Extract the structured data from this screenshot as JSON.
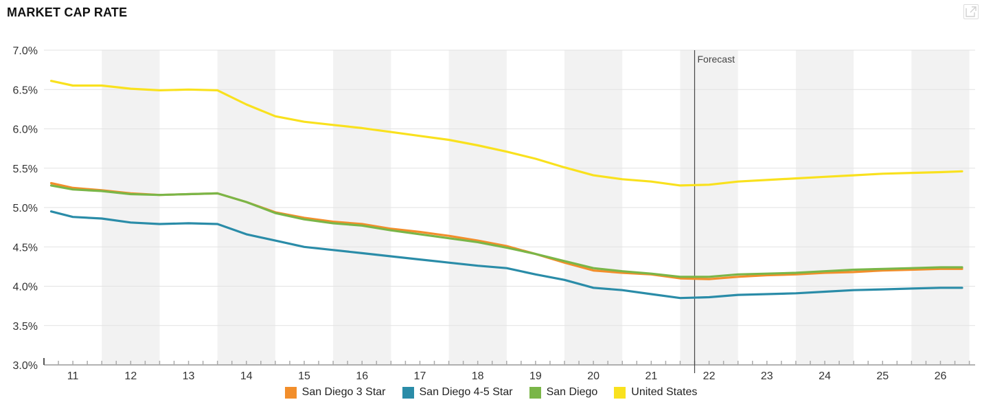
{
  "header": {
    "title": "MARKET CAP RATE"
  },
  "icons": {
    "expand": "expand-icon"
  },
  "chart_data": {
    "type": "line",
    "title": "MARKET CAP RATE",
    "xlabel": "",
    "ylabel": "",
    "ylim": [
      3.0,
      7.0
    ],
    "y_ticks": [
      "7.0%",
      "6.5%",
      "6.0%",
      "5.5%",
      "5.0%",
      "4.5%",
      "4.0%",
      "3.5%",
      "3.0%"
    ],
    "x_ticks": [
      "11",
      "12",
      "13",
      "14",
      "15",
      "16",
      "17",
      "18",
      "19",
      "20",
      "21",
      "22",
      "23",
      "24",
      "25",
      "26"
    ],
    "x_range": [
      2010.5,
      2026.6
    ],
    "forecast_label": "Forecast",
    "forecast_start": 2021.75,
    "grid": "horizontal, alternating year bands",
    "legend_position": "bottom",
    "series": [
      {
        "name": "San Diego 3 Star",
        "color": "#F28E2B",
        "x": [
          2010.625,
          2011,
          2011.5,
          2012,
          2012.5,
          2013,
          2013.5,
          2014,
          2014.5,
          2015,
          2015.5,
          2016,
          2016.5,
          2017,
          2017.5,
          2018,
          2018.5,
          2019,
          2019.5,
          2020,
          2020.5,
          2021,
          2021.5,
          2022,
          2022.5,
          2023,
          2023.5,
          2024,
          2024.5,
          2025,
          2025.5,
          2026,
          2026.375
        ],
        "values": [
          5.31,
          5.25,
          5.22,
          5.18,
          5.16,
          5.17,
          5.18,
          5.07,
          4.94,
          4.87,
          4.82,
          4.79,
          4.73,
          4.69,
          4.64,
          4.58,
          4.51,
          4.41,
          4.3,
          4.2,
          4.17,
          4.15,
          4.1,
          4.09,
          4.12,
          4.14,
          4.15,
          4.17,
          4.18,
          4.2,
          4.21,
          4.22,
          4.22
        ]
      },
      {
        "name": "San Diego 4-5 Star",
        "color": "#2A8CA8",
        "x": [
          2010.625,
          2011,
          2011.5,
          2012,
          2012.5,
          2013,
          2013.5,
          2014,
          2014.5,
          2015,
          2015.5,
          2016,
          2016.5,
          2017,
          2017.5,
          2018,
          2018.5,
          2019,
          2019.5,
          2020,
          2020.5,
          2021,
          2021.5,
          2022,
          2022.5,
          2023,
          2023.5,
          2024,
          2024.5,
          2025,
          2025.5,
          2026,
          2026.375
        ],
        "values": [
          4.95,
          4.88,
          4.86,
          4.81,
          4.79,
          4.8,
          4.79,
          4.66,
          4.58,
          4.5,
          4.46,
          4.42,
          4.38,
          4.34,
          4.3,
          4.26,
          4.23,
          4.15,
          4.08,
          3.98,
          3.95,
          3.9,
          3.85,
          3.86,
          3.89,
          3.9,
          3.91,
          3.93,
          3.95,
          3.96,
          3.97,
          3.98,
          3.98
        ]
      },
      {
        "name": "San Diego",
        "color": "#7AB648",
        "x": [
          2010.625,
          2011,
          2011.5,
          2012,
          2012.5,
          2013,
          2013.5,
          2014,
          2014.5,
          2015,
          2015.5,
          2016,
          2016.5,
          2017,
          2017.5,
          2018,
          2018.5,
          2019,
          2019.5,
          2020,
          2020.5,
          2021,
          2021.5,
          2022,
          2022.5,
          2023,
          2023.5,
          2024,
          2024.5,
          2025,
          2025.5,
          2026,
          2026.375
        ],
        "values": [
          5.28,
          5.23,
          5.21,
          5.17,
          5.16,
          5.17,
          5.18,
          5.07,
          4.93,
          4.85,
          4.8,
          4.77,
          4.71,
          4.66,
          4.61,
          4.56,
          4.49,
          4.41,
          4.32,
          4.23,
          4.19,
          4.16,
          4.12,
          4.12,
          4.15,
          4.16,
          4.17,
          4.19,
          4.21,
          4.22,
          4.23,
          4.24,
          4.24
        ]
      },
      {
        "name": "United States",
        "color": "#F9E11E",
        "x": [
          2010.625,
          2011,
          2011.5,
          2012,
          2012.5,
          2013,
          2013.5,
          2014,
          2014.5,
          2015,
          2015.5,
          2016,
          2016.5,
          2017,
          2017.5,
          2018,
          2018.5,
          2019,
          2019.5,
          2020,
          2020.5,
          2021,
          2021.5,
          2022,
          2022.5,
          2023,
          2023.5,
          2024,
          2024.5,
          2025,
          2025.5,
          2026,
          2026.375
        ],
        "values": [
          6.61,
          6.55,
          6.55,
          6.51,
          6.49,
          6.5,
          6.49,
          6.31,
          6.16,
          6.09,
          6.05,
          6.01,
          5.96,
          5.91,
          5.86,
          5.79,
          5.71,
          5.62,
          5.51,
          5.41,
          5.36,
          5.33,
          5.28,
          5.29,
          5.33,
          5.35,
          5.37,
          5.39,
          5.41,
          5.43,
          5.44,
          5.45,
          5.46
        ]
      }
    ]
  }
}
